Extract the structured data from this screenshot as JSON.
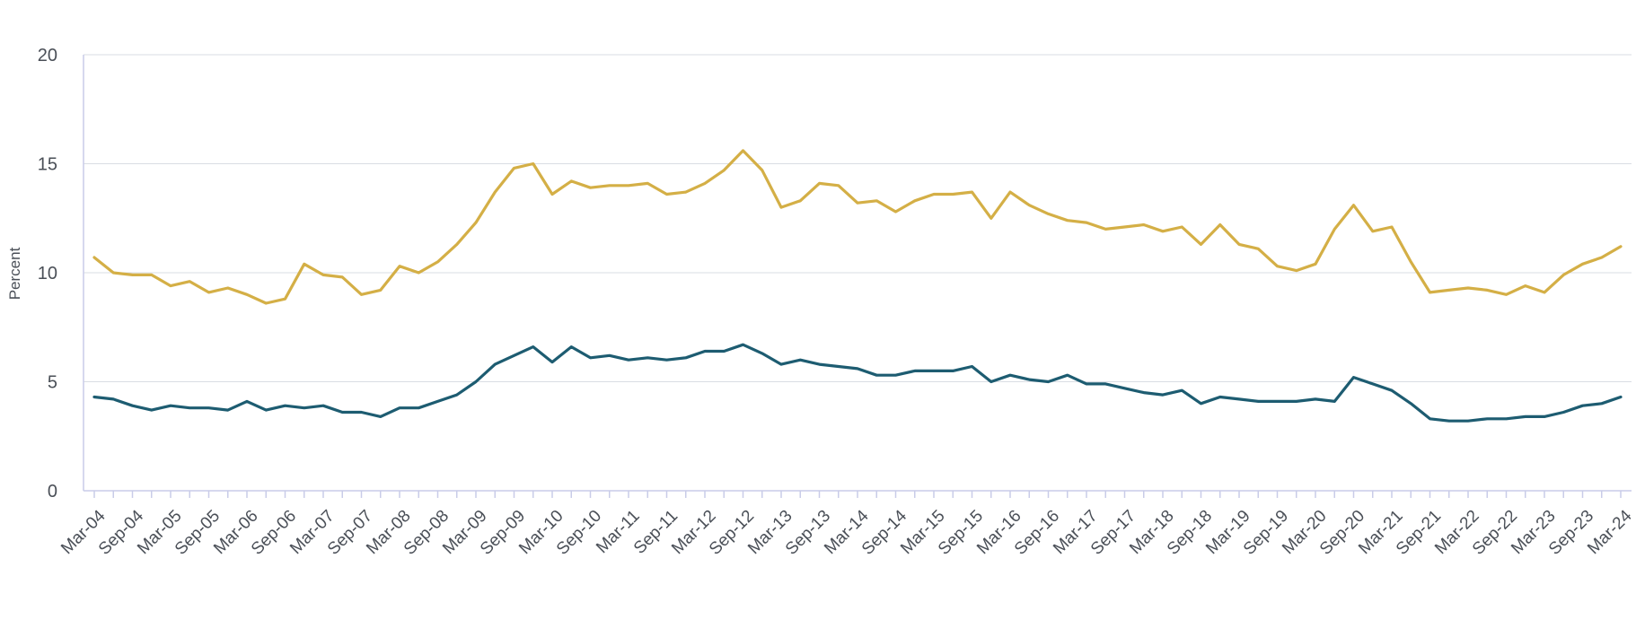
{
  "chart_data": {
    "type": "line",
    "title": "",
    "xlabel": "",
    "ylabel": "Percent",
    "ylim": [
      0,
      20
    ],
    "yticks": [
      0,
      5,
      10,
      15,
      20
    ],
    "grid": true,
    "x_tick_labels": [
      "Mar-04",
      "Sep-04",
      "Mar-05",
      "Sep-05",
      "Mar-06",
      "Sep-06",
      "Mar-07",
      "Sep-07",
      "Mar-08",
      "Sep-08",
      "Mar-09",
      "Sep-09",
      "Mar-10",
      "Sep-10",
      "Mar-11",
      "Sep-11",
      "Mar-12",
      "Sep-12",
      "Mar-13",
      "Sep-13",
      "Mar-14",
      "Sep-14",
      "Mar-15",
      "Sep-15",
      "Mar-16",
      "Sep-16",
      "Mar-17",
      "Sep-17",
      "Mar-18",
      "Sep-18",
      "Mar-19",
      "Sep-19",
      "Mar-20",
      "Sep-20",
      "Mar-21",
      "Sep-21",
      "Mar-22",
      "Sep-22",
      "Mar-23",
      "Sep-23",
      "Mar-24"
    ],
    "x": [
      "Mar-04",
      "Jun-04",
      "Sep-04",
      "Dec-04",
      "Mar-05",
      "Jun-05",
      "Sep-05",
      "Dec-05",
      "Mar-06",
      "Jun-06",
      "Sep-06",
      "Dec-06",
      "Mar-07",
      "Jun-07",
      "Sep-07",
      "Dec-07",
      "Mar-08",
      "Jun-08",
      "Sep-08",
      "Dec-08",
      "Mar-09",
      "Jun-09",
      "Sep-09",
      "Dec-09",
      "Mar-10",
      "Jun-10",
      "Sep-10",
      "Dec-10",
      "Mar-11",
      "Jun-11",
      "Sep-11",
      "Dec-11",
      "Mar-12",
      "Jun-12",
      "Sep-12",
      "Dec-12",
      "Mar-13",
      "Jun-13",
      "Sep-13",
      "Dec-13",
      "Mar-14",
      "Jun-14",
      "Sep-14",
      "Dec-14",
      "Mar-15",
      "Jun-15",
      "Sep-15",
      "Dec-15",
      "Mar-16",
      "Jun-16",
      "Sep-16",
      "Dec-16",
      "Mar-17",
      "Jun-17",
      "Sep-17",
      "Dec-17",
      "Mar-18",
      "Jun-18",
      "Sep-18",
      "Dec-18",
      "Mar-19",
      "Jun-19",
      "Sep-19",
      "Dec-19",
      "Mar-20",
      "Jun-20",
      "Sep-20",
      "Dec-20",
      "Mar-21",
      "Jun-21",
      "Sep-21",
      "Dec-21",
      "Mar-22",
      "Jun-22",
      "Sep-22",
      "Dec-22",
      "Mar-23",
      "Jun-23",
      "Sep-23",
      "Dec-23",
      "Mar-24"
    ],
    "series": [
      {
        "color": "#d4af46",
        "values": [
          10.7,
          10.0,
          9.9,
          9.9,
          9.4,
          9.6,
          9.1,
          9.3,
          9.0,
          8.6,
          8.8,
          10.4,
          9.9,
          9.8,
          9.0,
          9.2,
          10.3,
          10.0,
          10.5,
          11.3,
          12.3,
          13.7,
          14.8,
          15.0,
          13.6,
          14.2,
          13.9,
          14.0,
          14.0,
          14.1,
          13.6,
          13.7,
          14.1,
          14.7,
          15.6,
          14.7,
          13.0,
          13.3,
          14.1,
          14.0,
          13.2,
          13.3,
          12.8,
          13.3,
          13.6,
          13.6,
          13.7,
          12.5,
          13.7,
          13.1,
          12.7,
          12.4,
          12.3,
          12.0,
          12.1,
          12.2,
          11.9,
          12.1,
          11.3,
          12.2,
          11.3,
          11.1,
          10.3,
          10.1,
          10.4,
          12.0,
          13.1,
          11.9,
          12.1,
          10.5,
          9.1,
          9.2,
          9.3,
          9.2,
          9.0,
          9.4,
          9.1,
          9.9,
          10.4,
          10.7,
          11.2
        ]
      },
      {
        "color": "#1d5c71",
        "values": [
          4.3,
          4.2,
          3.9,
          3.7,
          3.9,
          3.8,
          3.8,
          3.7,
          4.1,
          3.7,
          3.9,
          3.8,
          3.9,
          3.6,
          3.6,
          3.4,
          3.8,
          3.8,
          4.1,
          4.4,
          5.0,
          5.8,
          6.2,
          6.6,
          5.9,
          6.6,
          6.1,
          6.2,
          6.0,
          6.1,
          6.0,
          6.1,
          6.4,
          6.4,
          6.7,
          6.3,
          5.8,
          6.0,
          5.8,
          5.7,
          5.6,
          5.3,
          5.3,
          5.5,
          5.5,
          5.5,
          5.7,
          5.0,
          5.3,
          5.1,
          5.0,
          5.3,
          4.9,
          4.9,
          4.7,
          4.5,
          4.4,
          4.6,
          4.0,
          4.3,
          4.2,
          4.1,
          4.1,
          4.1,
          4.2,
          4.1,
          5.2,
          4.9,
          4.6,
          4.0,
          3.3,
          3.2,
          3.2,
          3.3,
          3.3,
          3.4,
          3.4,
          3.6,
          3.9,
          4.0,
          4.3
        ]
      }
    ]
  }
}
